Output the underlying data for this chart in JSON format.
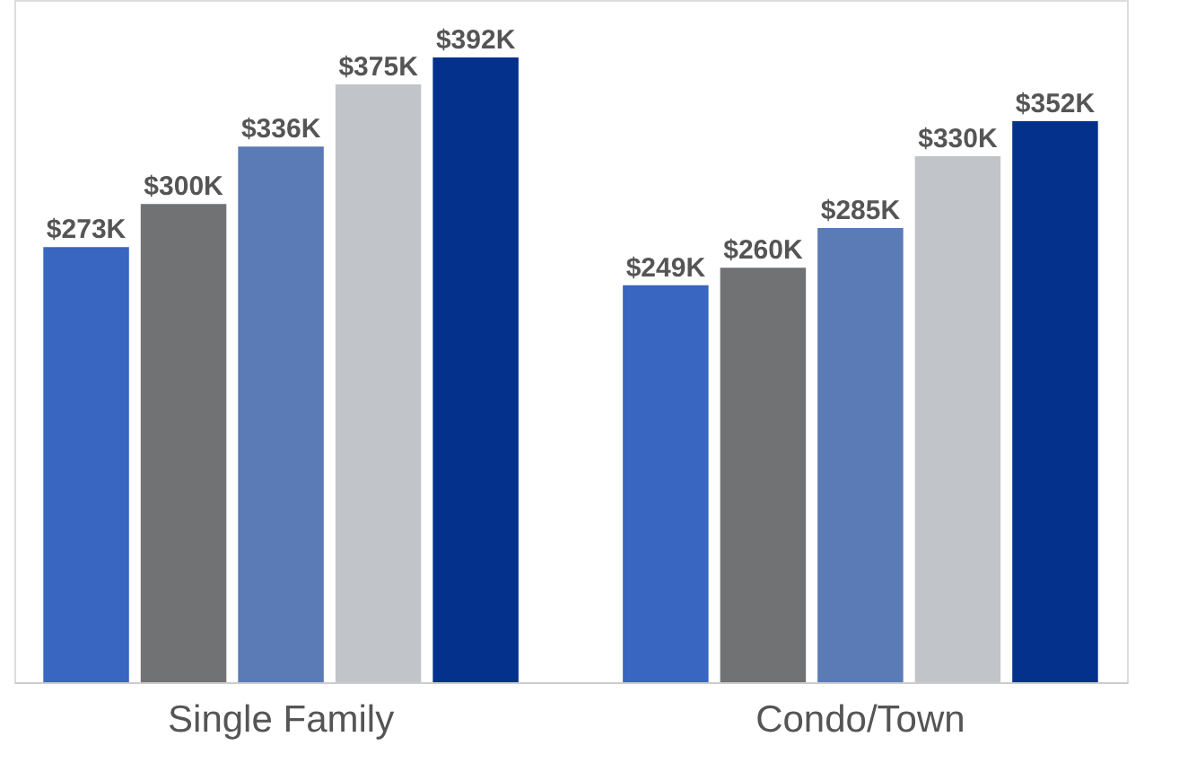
{
  "chart_data": {
    "type": "bar",
    "categories": [
      "Single Family",
      "Condo/Town"
    ],
    "series": [
      {
        "color": "#3866c0",
        "values": [
          273,
          249
        ],
        "value_labels": [
          "$273K",
          "$249K"
        ]
      },
      {
        "color": "#717274",
        "values": [
          300,
          260
        ],
        "value_labels": [
          "$300K",
          "$260K"
        ]
      },
      {
        "color": "#5b7bb6",
        "values": [
          336,
          285
        ],
        "value_labels": [
          "$336K",
          "$285K"
        ]
      },
      {
        "color": "#c1c5c9",
        "values": [
          375,
          330
        ],
        "value_labels": [
          "$375K",
          "$330K"
        ]
      },
      {
        "color": "#04318c",
        "values": [
          392,
          352
        ],
        "value_labels": [
          "$392K",
          "$352K"
        ]
      }
    ],
    "ylim": [
      0,
      428
    ]
  }
}
